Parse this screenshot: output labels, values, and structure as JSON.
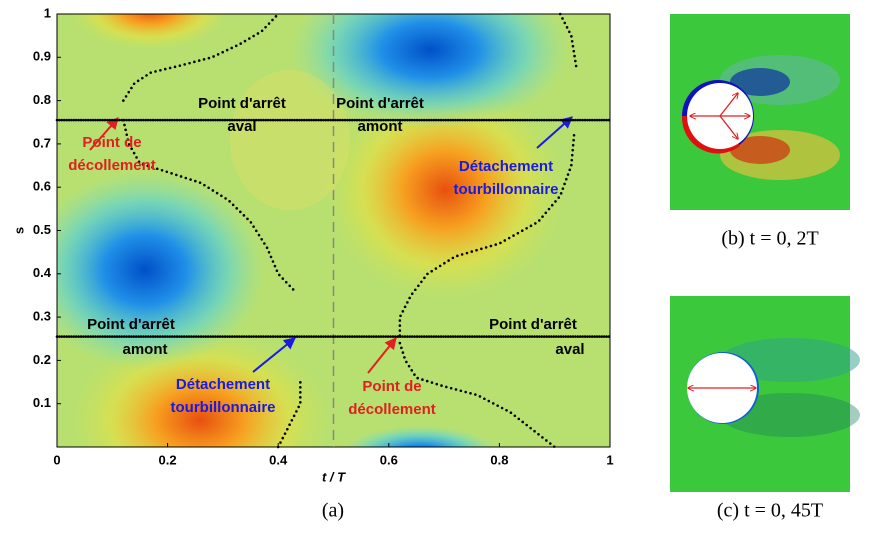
{
  "chart_data": {
    "type": "scatter",
    "xlabel": "t / T",
    "ylabel": "s",
    "xlim": [
      0,
      1
    ],
    "ylim": [
      0,
      1
    ],
    "xticks": [
      0,
      0.2,
      0.4,
      0.6,
      0.8,
      1
    ],
    "yticks": [
      0.1,
      0.2,
      0.3,
      0.4,
      0.5,
      0.6,
      0.7,
      0.8,
      0.9,
      1
    ],
    "vline": 0.5,
    "series": [
      {
        "color": "#000000",
        "x": [
          0,
          1
        ],
        "values": [
          0.755,
          0.755
        ]
      },
      {
        "color": "#000000",
        "x": [
          0,
          1
        ],
        "values": [
          0.255,
          0.255
        ]
      },
      {
        "color": "#000000",
        "x": [
          0.12,
          0.14,
          0.17,
          0.22,
          0.28,
          0.33,
          0.37,
          0.4
        ],
        "values": [
          0.8,
          0.84,
          0.865,
          0.88,
          0.9,
          0.93,
          0.96,
          1
        ]
      },
      {
        "color": "#000000",
        "x": [
          0.12,
          0.13,
          0.15,
          0.2,
          0.26,
          0.31,
          0.35,
          0.38,
          0.4,
          0.43
        ],
        "values": [
          0.755,
          0.7,
          0.655,
          0.635,
          0.61,
          0.57,
          0.52,
          0.46,
          0.4,
          0.36
        ]
      },
      {
        "color": "#000000",
        "x": [
          0.4,
          0.42,
          0.44,
          0.44
        ],
        "values": [
          0,
          0.05,
          0.1,
          0.15
        ]
      },
      {
        "color": "#000000",
        "x": [
          0.91,
          0.93,
          0.94
        ],
        "values": [
          1,
          0.95,
          0.87
        ]
      },
      {
        "color": "#000000",
        "x": [
          0.935,
          0.93,
          0.91,
          0.87,
          0.8,
          0.72,
          0.67,
          0.64,
          0.62,
          0.62
        ],
        "values": [
          0.72,
          0.65,
          0.58,
          0.52,
          0.47,
          0.44,
          0.4,
          0.35,
          0.3,
          0.255
        ]
      },
      {
        "color": "#000000",
        "x": [
          0.62,
          0.63,
          0.65,
          0.7,
          0.76,
          0.82,
          0.87,
          0.9
        ],
        "values": [
          0.24,
          0.2,
          0.16,
          0.14,
          0.12,
          0.08,
          0.03,
          0
        ]
      }
    ],
    "annotations": [
      {
        "lines": [
          "Point d'arrêt",
          "aval"
        ],
        "color": "#000000"
      },
      {
        "lines": [
          "Point d'arrêt",
          "amont"
        ],
        "color": "#000000"
      },
      {
        "lines": [
          "Point de",
          "décollement"
        ],
        "color": "#e02020"
      },
      {
        "lines": [
          "Détachement",
          "tourbillonnaire"
        ],
        "color": "#1a1ae0"
      },
      {
        "lines": [
          "Point d'arrêt",
          "amont"
        ],
        "color": "#000000"
      },
      {
        "lines": [
          "Détachement",
          "tourbillonnaire"
        ],
        "color": "#1a1ae0"
      },
      {
        "lines": [
          "Point de",
          "décollement"
        ],
        "color": "#e02020"
      },
      {
        "lines": [
          "Point d'arrêt",
          "aval"
        ],
        "color": "#000000"
      }
    ],
    "captions": [
      "(a)",
      "(b) t = 0, 2T",
      "(c) t = 0, 45T"
    ]
  }
}
